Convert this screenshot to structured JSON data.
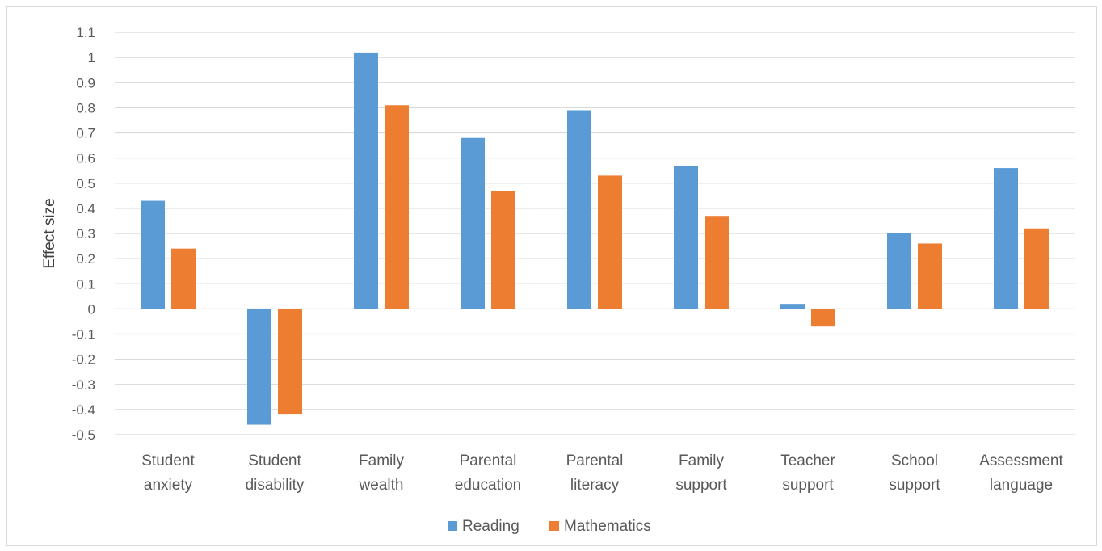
{
  "chart_data": {
    "type": "bar",
    "title": "",
    "xlabel": "",
    "ylabel": "Effect size",
    "ylim": [
      -0.5,
      1.1
    ],
    "ytick_step": 0.1,
    "yticks": [
      "-0.5",
      "-0.4",
      "-0.3",
      "-0.2",
      "-0.1",
      "0",
      "0.1",
      "0.2",
      "0.3",
      "0.4",
      "0.5",
      "0.6",
      "0.7",
      "0.8",
      "0.9",
      "1",
      "1.1"
    ],
    "grid": true,
    "legend_position": "bottom",
    "categories": [
      [
        "Student",
        "anxiety"
      ],
      [
        "Student",
        "disability"
      ],
      [
        "Family",
        "wealth"
      ],
      [
        "Parental",
        "education"
      ],
      [
        "Parental",
        "literacy"
      ],
      [
        "Family",
        "support"
      ],
      [
        "Teacher",
        "support"
      ],
      [
        "School",
        "support"
      ],
      [
        "Assessment",
        "language"
      ]
    ],
    "series": [
      {
        "name": "Reading",
        "color": "#5b9bd5",
        "values": [
          0.43,
          -0.46,
          1.02,
          0.68,
          0.79,
          0.57,
          0.02,
          0.3,
          0.56
        ]
      },
      {
        "name": "Mathematics",
        "color": "#ed7d31",
        "values": [
          0.24,
          -0.42,
          0.81,
          0.47,
          0.53,
          0.37,
          -0.07,
          0.26,
          0.32
        ]
      }
    ]
  }
}
